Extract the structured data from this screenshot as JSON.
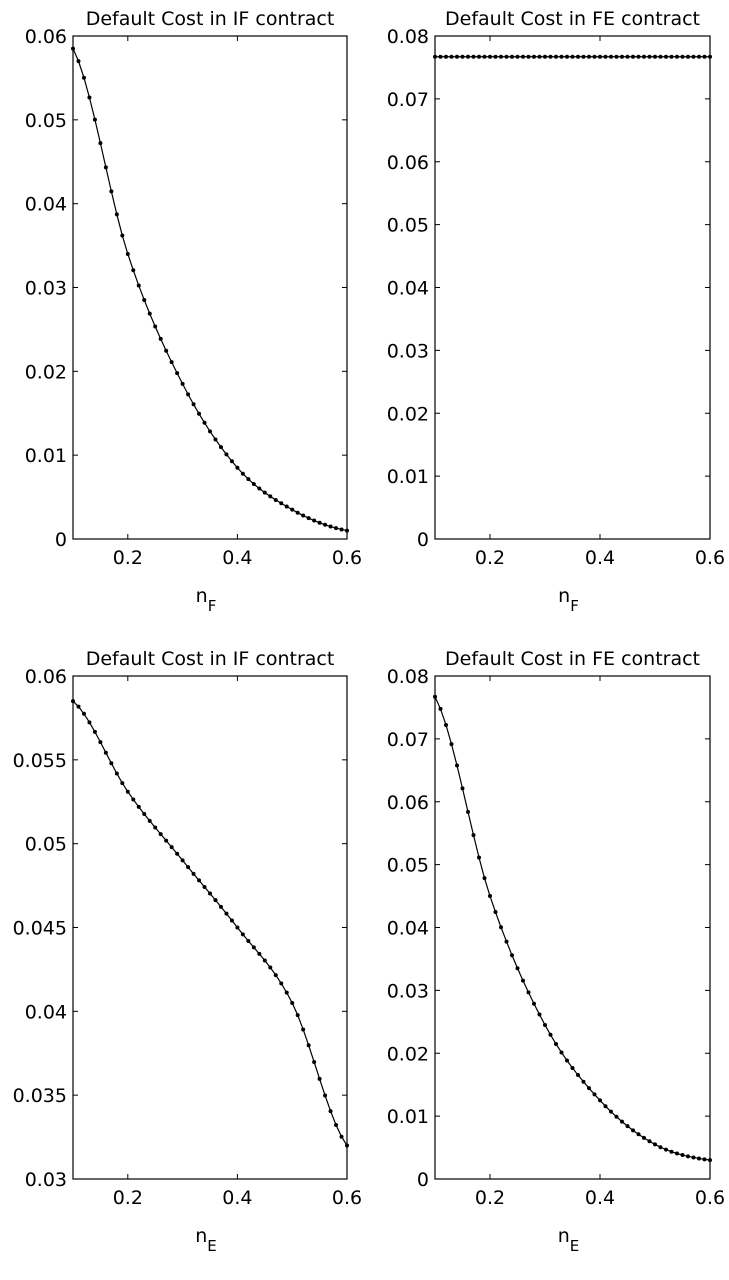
{
  "chart_data": [
    {
      "type": "line",
      "title": "Default Cost in IF contract",
      "xlabel": "n",
      "xlabel_sub": "F",
      "ylabel": "",
      "xlim": [
        0.1,
        0.6
      ],
      "ylim": [
        0,
        0.06
      ],
      "xticks": [
        0.2,
        0.4,
        0.6
      ],
      "yticks": [
        0,
        0.01,
        0.02,
        0.03,
        0.04,
        0.05,
        0.06
      ],
      "ytick_labels": [
        "0",
        "0.01",
        "0.02",
        "0.03",
        "0.04",
        "0.05",
        "0.06"
      ],
      "xtick_labels": [
        "0.2",
        "0.4",
        "0.6"
      ],
      "grid": false,
      "markers": "dot",
      "series": [
        {
          "x": [
            0.1,
            0.2,
            0.3,
            0.4,
            0.5,
            0.6
          ],
          "y": [
            0.0585,
            0.034,
            0.0185,
            0.0085,
            0.0035,
            0.001
          ]
        }
      ]
    },
    {
      "type": "line",
      "title": "Default Cost in FE contract",
      "xlabel": "n",
      "xlabel_sub": "F",
      "ylabel": "",
      "xlim": [
        0.1,
        0.6
      ],
      "ylim": [
        0,
        0.08
      ],
      "xticks": [
        0.2,
        0.4,
        0.6
      ],
      "yticks": [
        0,
        0.01,
        0.02,
        0.03,
        0.04,
        0.05,
        0.06,
        0.07,
        0.08
      ],
      "ytick_labels": [
        "0",
        "0.01",
        "0.02",
        "0.03",
        "0.04",
        "0.05",
        "0.06",
        "0.07",
        "0.08"
      ],
      "xtick_labels": [
        "0.2",
        "0.4",
        "0.6"
      ],
      "grid": false,
      "markers": "dot",
      "series": [
        {
          "x": [
            0.1,
            0.2,
            0.3,
            0.4,
            0.5,
            0.6
          ],
          "y": [
            0.0767,
            0.0767,
            0.0767,
            0.0767,
            0.0767,
            0.0767
          ]
        }
      ]
    },
    {
      "type": "line",
      "title": "Default Cost in IF contract",
      "xlabel": "n",
      "xlabel_sub": "E",
      "ylabel": "",
      "xlim": [
        0.1,
        0.6
      ],
      "ylim": [
        0.03,
        0.06
      ],
      "xticks": [
        0.2,
        0.4,
        0.6
      ],
      "yticks": [
        0.03,
        0.035,
        0.04,
        0.045,
        0.05,
        0.055,
        0.06
      ],
      "ytick_labels": [
        "0.03",
        "0.035",
        "0.04",
        "0.045",
        "0.05",
        "0.055",
        "0.06"
      ],
      "xtick_labels": [
        "0.2",
        "0.4",
        "0.6"
      ],
      "grid": false,
      "markers": "dot",
      "series": [
        {
          "x": [
            0.1,
            0.2,
            0.3,
            0.4,
            0.5,
            0.6
          ],
          "y": [
            0.0585,
            0.0531,
            0.049,
            0.045,
            0.0405,
            0.032
          ]
        }
      ]
    },
    {
      "type": "line",
      "title": "Default Cost in FE contract",
      "xlabel": "n",
      "xlabel_sub": "E",
      "ylabel": "",
      "xlim": [
        0.1,
        0.6
      ],
      "ylim": [
        0,
        0.08
      ],
      "xticks": [
        0.2,
        0.4,
        0.6
      ],
      "yticks": [
        0,
        0.01,
        0.02,
        0.03,
        0.04,
        0.05,
        0.06,
        0.07,
        0.08
      ],
      "ytick_labels": [
        "0",
        "0.01",
        "0.02",
        "0.03",
        "0.04",
        "0.05",
        "0.06",
        "0.07",
        "0.08"
      ],
      "xtick_labels": [
        "0.2",
        "0.4",
        "0.6"
      ],
      "grid": false,
      "markers": "dot",
      "series": [
        {
          "x": [
            0.1,
            0.2,
            0.3,
            0.4,
            0.5,
            0.6
          ],
          "y": [
            0.0767,
            0.045,
            0.0245,
            0.0125,
            0.0055,
            0.003
          ]
        }
      ]
    }
  ]
}
